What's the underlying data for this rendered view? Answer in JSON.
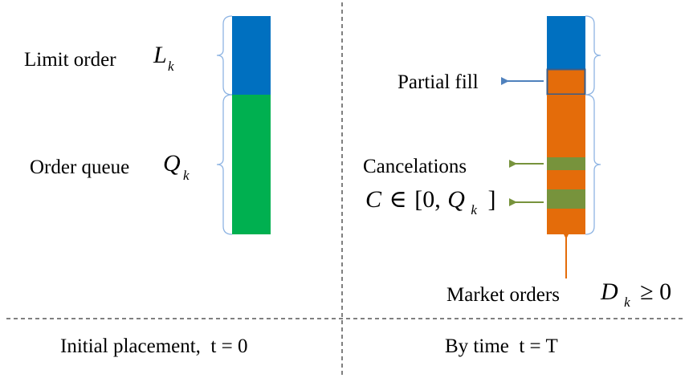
{
  "left_panel": {
    "limit_order_label": "Limit order",
    "limit_order_symbol": "L",
    "limit_order_subscript": "k",
    "order_queue_label": "Order queue",
    "order_queue_symbol": "Q",
    "order_queue_subscript": "k",
    "caption": "Initial placement,  t = 0"
  },
  "right_panel": {
    "partial_fill_label": "Partial fill",
    "cancelations_label": "Cancelations",
    "cancelation_formula": {
      "symbol": "C",
      "relation": "∈",
      "interval_open": "[0,",
      "queue_symbol": "Q",
      "queue_subscript": "k",
      "interval_close": "]"
    },
    "market_orders_label": "Market orders",
    "market_orders_formula": {
      "symbol": "D",
      "subscript": "k",
      "relation": "≥ 0"
    },
    "caption": "By time  t = T"
  },
  "colors": {
    "limit_order": "#0070c0",
    "order_queue": "#00b050",
    "executed": "#e46c0a",
    "canceled": "#77933c",
    "partial_fill_arrow": "#4f81bd",
    "cancel_arrow": "#77933c",
    "market_arrow": "#e46c0a",
    "brace": "#8eb4e3",
    "partial_fill_box": "#385d8a"
  }
}
